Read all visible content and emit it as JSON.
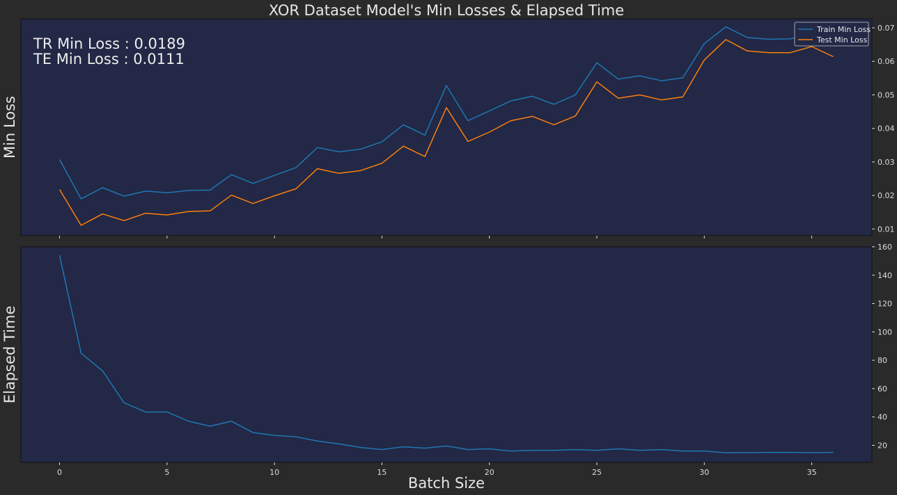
{
  "chart_data": [
    {
      "type": "line",
      "title": "XOR Dataset Model's Min Losses & Elapsed Time",
      "ylabel": "Min Loss",
      "annotations": [
        "TR Min Loss : 0.0189",
        "TE Min Loss : 0.0111"
      ],
      "legend_placement": "top-right",
      "x": [
        0,
        1,
        2,
        3,
        4,
        5,
        6,
        7,
        8,
        9,
        10,
        11,
        12,
        13,
        14,
        15,
        16,
        17,
        18,
        19,
        20,
        21,
        22,
        23,
        24,
        25,
        26,
        27,
        28,
        29,
        30,
        31,
        32,
        33,
        34,
        35,
        36
      ],
      "xlim": [
        -1.8,
        37.8
      ],
      "ylim": [
        0.008,
        0.0727
      ],
      "yticks": [
        0.01,
        0.02,
        0.03,
        0.04,
        0.05,
        0.06,
        0.07
      ],
      "ytick_labels": [
        "0.01",
        "0.02",
        "0.03",
        "0.04",
        "0.05",
        "0.06",
        "0.07"
      ],
      "series": [
        {
          "name": "Train Min Loss",
          "color": "#1f77b4",
          "values": [
            0.0307,
            0.019,
            0.0223,
            0.0198,
            0.0213,
            0.0208,
            0.0215,
            0.0216,
            0.0262,
            0.0236,
            0.026,
            0.0283,
            0.0343,
            0.033,
            0.0338,
            0.036,
            0.0411,
            0.038,
            0.0528,
            0.0423,
            0.0452,
            0.0482,
            0.0496,
            0.0472,
            0.05,
            0.0596,
            0.0547,
            0.0557,
            0.0542,
            0.0551,
            0.0653,
            0.0703,
            0.0671,
            0.0666,
            0.0667,
            0.0679,
            0.0693
          ]
        },
        {
          "name": "Test Min Loss",
          "color": "#ff7f0e",
          "values": [
            0.0218,
            0.0111,
            0.0145,
            0.0125,
            0.0147,
            0.0142,
            0.0152,
            0.0154,
            0.0201,
            0.0176,
            0.0199,
            0.022,
            0.028,
            0.0266,
            0.0274,
            0.0296,
            0.0347,
            0.0316,
            0.0462,
            0.0361,
            0.0389,
            0.0423,
            0.0436,
            0.0411,
            0.0437,
            0.0539,
            0.049,
            0.05,
            0.0485,
            0.0494,
            0.0604,
            0.0665,
            0.0631,
            0.0626,
            0.0626,
            0.0644,
            0.0614
          ]
        }
      ]
    },
    {
      "type": "line",
      "xlabel": "Batch Size",
      "ylabel": "Elapsed Time",
      "x": [
        0,
        1,
        2,
        3,
        4,
        5,
        6,
        7,
        8,
        9,
        10,
        11,
        12,
        13,
        14,
        15,
        16,
        17,
        18,
        19,
        20,
        21,
        22,
        23,
        24,
        25,
        26,
        27,
        28,
        29,
        30,
        31,
        32,
        33,
        34,
        35,
        36
      ],
      "xlim": [
        -1.8,
        37.8
      ],
      "ylim": [
        8,
        160
      ],
      "yticks": [
        20,
        40,
        60,
        80,
        100,
        120,
        140,
        160
      ],
      "ytick_labels": [
        "20",
        "40",
        "60",
        "80",
        "100",
        "120",
        "140",
        "160"
      ],
      "xticks": [
        0,
        5,
        10,
        15,
        20,
        25,
        30,
        35
      ],
      "xtick_labels": [
        "0",
        "5",
        "10",
        "15",
        "20",
        "25",
        "30",
        "35"
      ],
      "series": [
        {
          "color": "#1f77b4",
          "values": [
            154,
            85,
            72.5,
            50,
            43.5,
            43.5,
            37,
            33.5,
            37,
            29,
            27,
            26,
            23,
            21,
            18.5,
            17,
            19,
            18,
            19.5,
            17,
            17.5,
            16,
            16.5,
            16.5,
            17,
            16.5,
            17.5,
            16.5,
            17,
            16,
            16,
            14.7,
            14.8,
            15,
            15,
            14.8,
            15
          ]
        }
      ]
    }
  ]
}
